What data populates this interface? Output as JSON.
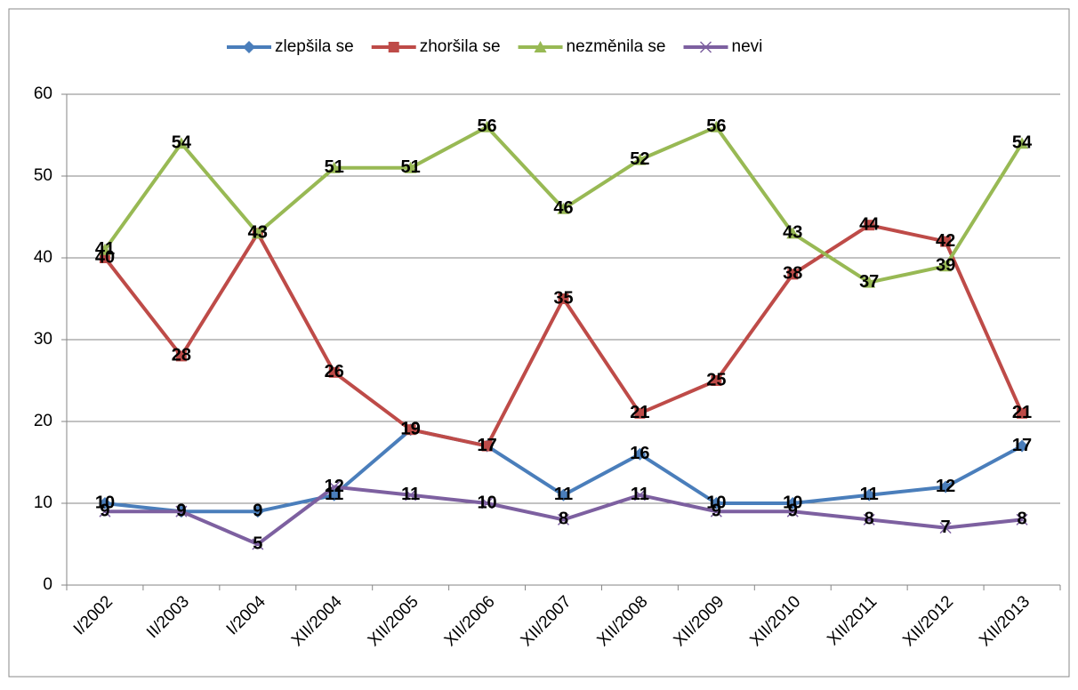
{
  "chart_data": {
    "type": "line",
    "categories": [
      "I/2002",
      "II/2003",
      "I/2004",
      "XII/2004",
      "XII/2005",
      "XII/2006",
      "XII/2007",
      "XII/2008",
      "XII/2009",
      "XII/2010",
      "XII/2011",
      "XII/2012",
      "XII/2013"
    ],
    "series": [
      {
        "name": "zlepšila se",
        "color": "#4a7ebb",
        "marker": "diamond",
        "values": [
          10,
          9,
          9,
          11,
          19,
          17,
          11,
          16,
          10,
          10,
          11,
          12,
          17
        ]
      },
      {
        "name": "zhoršila se",
        "color": "#be4b48",
        "marker": "square",
        "values": [
          40,
          28,
          43,
          26,
          19,
          17,
          35,
          21,
          25,
          38,
          44,
          42,
          21
        ]
      },
      {
        "name": "nezměnila se",
        "color": "#98b954",
        "marker": "triangle",
        "values": [
          41,
          54,
          43,
          51,
          51,
          56,
          46,
          52,
          56,
          43,
          37,
          39,
          54
        ]
      },
      {
        "name": "nevi",
        "color": "#7d60a0",
        "marker": "x",
        "values": [
          9,
          9,
          5,
          12,
          11,
          10,
          8,
          11,
          9,
          9,
          8,
          7,
          8
        ]
      }
    ],
    "ylim": [
      0,
      60
    ],
    "yticks": [
      0,
      10,
      20,
      30,
      40,
      50,
      60
    ],
    "grid": true,
    "legend": "top"
  }
}
